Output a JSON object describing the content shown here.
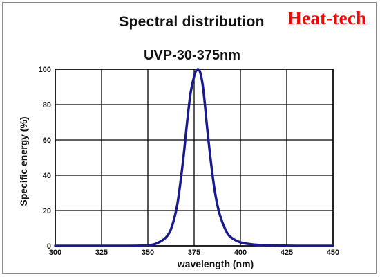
{
  "header": {
    "title": "Spectral distribution",
    "brand": "Heat-tech"
  },
  "colors": {
    "series": "#1a1a8c",
    "brand": "#ff0000",
    "grid": "#000000"
  },
  "chart_data": {
    "type": "line",
    "title": "Spectral distribution",
    "subtitle": "UVP-30-375nm",
    "xlabel": "wavelength (nm)",
    "ylabel": "Specific energy (%)",
    "xlim": [
      300,
      450
    ],
    "ylim": [
      0,
      100
    ],
    "xticks": [
      "300",
      "325",
      "350",
      "375",
      "400",
      "425",
      "450"
    ],
    "yticks": [
      "0",
      "20",
      "40",
      "60",
      "80",
      "100"
    ],
    "grid": true,
    "legend": "none",
    "series": [
      {
        "x": [
          300,
          340,
          350,
          355,
          360,
          363,
          366,
          369,
          371,
          373,
          375,
          376,
          377,
          378,
          379,
          380,
          381,
          382,
          384,
          386,
          388,
          390,
          393,
          396,
          400,
          405,
          410,
          420,
          430,
          450
        ],
        "y": [
          0,
          0,
          0.3,
          1.5,
          5,
          11,
          24,
          48,
          68,
          86,
          96,
          99,
          100,
          99,
          95,
          88,
          78,
          67,
          48,
          32,
          21,
          14,
          7,
          4,
          2,
          1,
          0.5,
          0.2,
          0,
          0
        ]
      }
    ]
  }
}
